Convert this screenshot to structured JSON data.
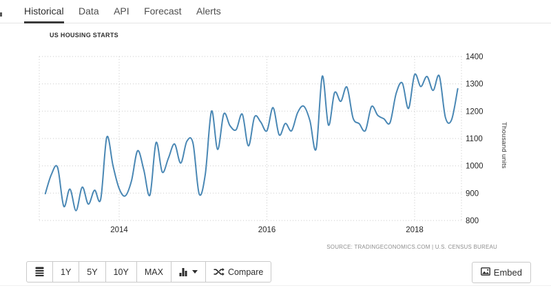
{
  "tabs": {
    "items": [
      {
        "label": "Historical",
        "active": true
      },
      {
        "label": "Data",
        "active": false
      },
      {
        "label": "API",
        "active": false
      },
      {
        "label": "Forecast",
        "active": false
      },
      {
        "label": "Alerts",
        "active": false
      }
    ]
  },
  "chart": {
    "title": "US HOUSING STARTS",
    "y_axis_unit": "Thousand units",
    "source": "SOURCE: TRADINGECONOMICS.COM | U.S. CENSUS BUREAU"
  },
  "colors": {
    "line": "#4987b4",
    "grid": "#c9c9c9",
    "active_tab_underline": "#3a3a3a",
    "axis_text": "#262626"
  },
  "icons": {
    "date_range": "calendar-icon",
    "chart_type": "bar-chart-icon",
    "chart_type_caret": "caret-down-icon",
    "compare": "shuffle-icon",
    "embed": "image-icon"
  },
  "toolbar": {
    "range_1y": "1Y",
    "range_5y": "5Y",
    "range_10y": "10Y",
    "range_max": "MAX",
    "compare": "Compare",
    "embed": "Embed"
  },
  "chart_data": {
    "type": "line",
    "title": "US HOUSING STARTS",
    "xlabel": "",
    "ylabel": "Thousand units",
    "ylim": [
      800,
      1400
    ],
    "y_ticks": [
      800,
      900,
      1000,
      1100,
      1200,
      1300,
      1400
    ],
    "x_ticks": [
      "2014",
      "2016",
      "2018"
    ],
    "grid": "dotted",
    "legend_position": "none",
    "series": [
      {
        "name": "US Housing Starts (thousand units)",
        "x": [
          "2013-01",
          "2013-02",
          "2013-03",
          "2013-04",
          "2013-05",
          "2013-06",
          "2013-07",
          "2013-08",
          "2013-09",
          "2013-10",
          "2013-11",
          "2013-12",
          "2014-01",
          "2014-02",
          "2014-03",
          "2014-04",
          "2014-05",
          "2014-06",
          "2014-07",
          "2014-08",
          "2014-09",
          "2014-10",
          "2014-11",
          "2014-12",
          "2015-01",
          "2015-02",
          "2015-03",
          "2015-04",
          "2015-05",
          "2015-06",
          "2015-07",
          "2015-08",
          "2015-09",
          "2015-10",
          "2015-11",
          "2015-12",
          "2016-01",
          "2016-02",
          "2016-03",
          "2016-04",
          "2016-05",
          "2016-06",
          "2016-07",
          "2016-08",
          "2016-09",
          "2016-10",
          "2016-11",
          "2016-12",
          "2017-01",
          "2017-02",
          "2017-03",
          "2017-04",
          "2017-05",
          "2017-06",
          "2017-07",
          "2017-08",
          "2017-09",
          "2017-10",
          "2017-11",
          "2017-12",
          "2018-01",
          "2018-02",
          "2018-03",
          "2018-04",
          "2018-05",
          "2018-06",
          "2018-07",
          "2018-08"
        ],
        "values": [
          898,
          969,
          994,
          852,
          915,
          836,
          922,
          860,
          911,
          878,
          1105,
          1000,
          917,
          890,
          945,
          1055,
          985,
          893,
          1085,
          977,
          1028,
          1080,
          1010,
          1090,
          1082,
          897,
          970,
          1200,
          1060,
          1190,
          1147,
          1132,
          1189,
          1073,
          1179,
          1160,
          1128,
          1213,
          1113,
          1155,
          1128,
          1195,
          1218,
          1164,
          1062,
          1328,
          1149,
          1268,
          1236,
          1288,
          1175,
          1154,
          1129,
          1217,
          1185,
          1172,
          1158,
          1265,
          1303,
          1210,
          1334,
          1290,
          1327,
          1276,
          1329,
          1177,
          1168,
          1282
        ]
      }
    ]
  }
}
